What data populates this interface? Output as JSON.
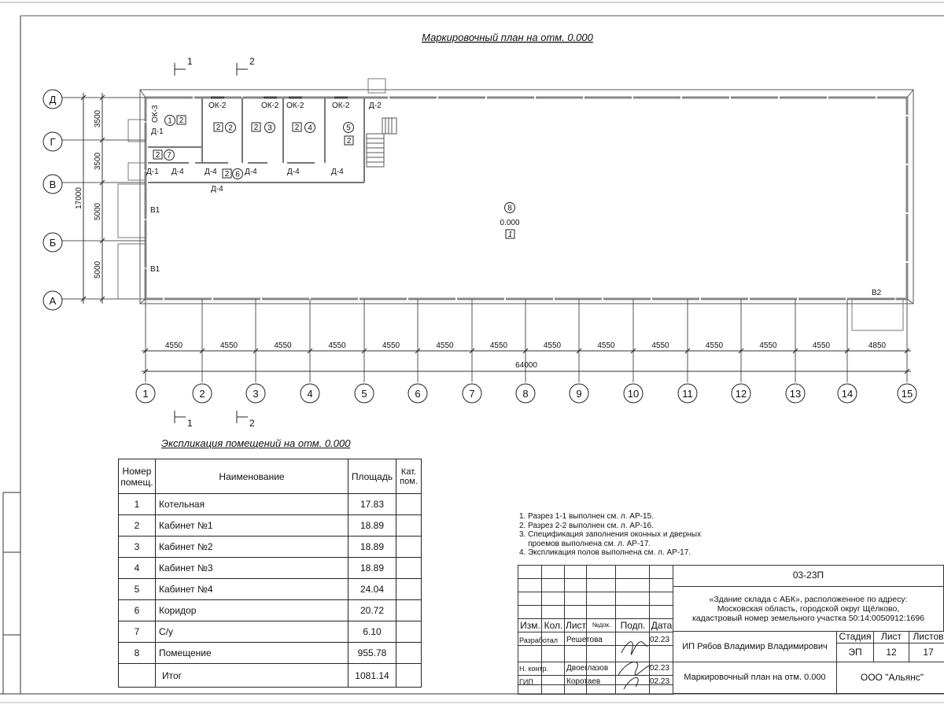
{
  "plan": {
    "title": "Маркировочный план на отм. 0.000",
    "axes_numeric": [
      "1",
      "2",
      "3",
      "4",
      "5",
      "6",
      "7",
      "8",
      "9",
      "10",
      "11",
      "12",
      "13",
      "14",
      "15"
    ],
    "axes_letter": [
      "Д",
      "Г",
      "В",
      "Б",
      "А"
    ],
    "spans": [
      "4550",
      "4550",
      "4550",
      "4550",
      "4550",
      "4550",
      "4550",
      "4550",
      "4550",
      "4550",
      "4550",
      "4550",
      "4550",
      "4850"
    ],
    "total_length": "64000",
    "vertical_spans": [
      "3500",
      "3500",
      "5000",
      "5000"
    ],
    "total_width": "17000",
    "section_marks": [
      "1",
      "2"
    ],
    "windows": [
      "ОК-3",
      "ОК-2",
      "ОК-2",
      "ОК-2",
      "ОК-2"
    ],
    "doors": [
      "Д-1",
      "Д-1",
      "Д-2",
      "Д-4",
      "Д-4",
      "Д-4",
      "Д-4",
      "Д-4",
      "Д-4"
    ],
    "gates": [
      "В1",
      "В1",
      "В2"
    ],
    "room_numbers": [
      "1",
      "2",
      "3",
      "4",
      "5",
      "6",
      "7",
      "8"
    ],
    "room_category": "2",
    "hall_category": "1",
    "hall_level": "0.000"
  },
  "explication": {
    "title": "Экспликация помещений на отм. 0.000",
    "headers": [
      "Номер помещ.",
      "Наименование",
      "Площадь",
      "Кат. пом."
    ],
    "rows": [
      {
        "num": "1",
        "name": "Котельная",
        "area": "17.83"
      },
      {
        "num": "2",
        "name": "Кабинет №1",
        "area": "18.89"
      },
      {
        "num": "3",
        "name": "Кабинет №2",
        "area": "18.89"
      },
      {
        "num": "4",
        "name": "Кабинет №3",
        "area": "18.89"
      },
      {
        "num": "5",
        "name": "Кабинет №4",
        "area": "24.04"
      },
      {
        "num": "6",
        "name": "Коридор",
        "area": "20.72"
      },
      {
        "num": "7",
        "name": "С/у",
        "area": "6.10"
      },
      {
        "num": "8",
        "name": "Помещение",
        "area": "955.78"
      }
    ],
    "total_label": "Итог",
    "total_area": "1081.14"
  },
  "notes": [
    "1. Разрез 1-1 выполнен см. л. АР-15.",
    "2. Разрез 2-2 выполнен см. л. АР-16.",
    "3. Спецификация заполнения оконных и дверных\n    проемов выполнена см. л. АР-17.",
    "4. Экспликация полов выполнена см. л. АР-17."
  ],
  "title_block": {
    "code": "03-23П",
    "object": "«Здание склада с АБК», расположенное по адресу:\nМосковская область, городской округ Щёлково,\nкадастровый номер земельного участка 50:14:0050912:1696",
    "cols": [
      "Изм.",
      "Кол.",
      "Лист",
      "№док.",
      "Подп.",
      "Дата"
    ],
    "roles": [
      {
        "role": "Разработал",
        "name": "Решетова",
        "date": "02.23"
      },
      {
        "role": "Н. контр.",
        "name": "Двоеглазов",
        "date": "02.23"
      },
      {
        "role": "ГИП",
        "name": "Коротаев",
        "date": "02.23"
      }
    ],
    "organization_author": "ИП Рябов Владимир Владимирович",
    "stage_label": "Стадия",
    "sheet_label": "Лист",
    "sheets_label": "Листов",
    "stage": "ЭП",
    "sheet": "12",
    "sheets": "17",
    "sheet_title": "Маркировочный план на отм. 0.000",
    "company": "ООО \"Альянс\""
  }
}
